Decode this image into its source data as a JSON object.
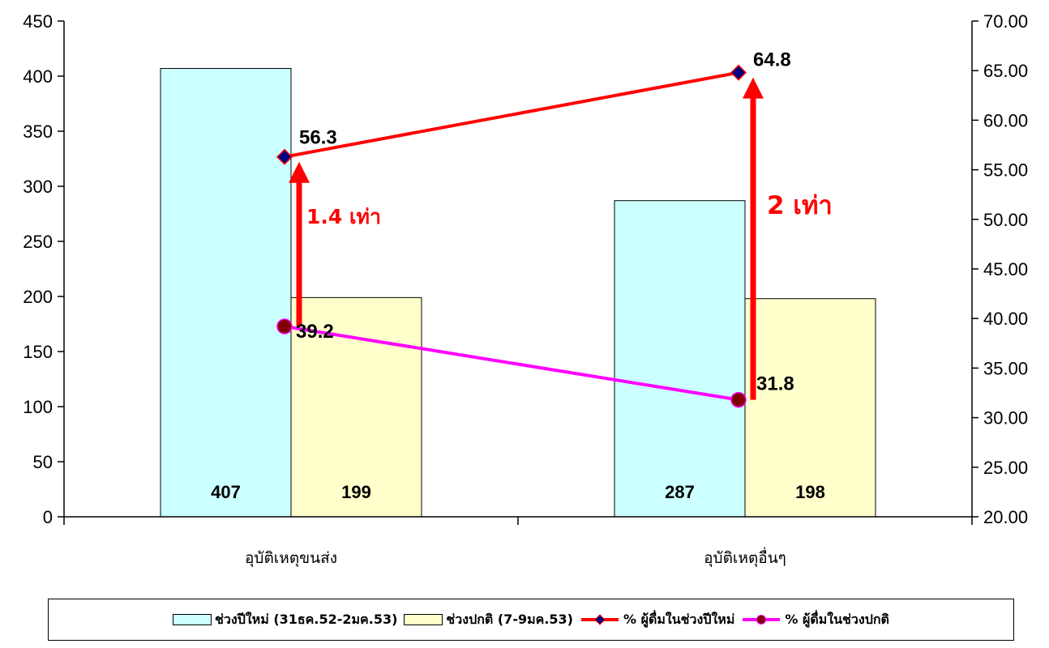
{
  "chart_data": {
    "type": "bar",
    "categories": [
      "อุบัติเหตุขนส่ง",
      "อุบัติเหตุอื่นๆ"
    ],
    "series": [
      {
        "name": "ช่วงปีใหม่ (31ธค.52-2มค.53)",
        "type": "bar",
        "axis": "left",
        "color": "#ccffff",
        "values": [
          407,
          287
        ]
      },
      {
        "name": "ช่วงปกติ (7-9มค.53)",
        "type": "bar",
        "axis": "left",
        "color": "#ffffcc",
        "values": [
          199,
          198
        ]
      },
      {
        "name": "% ผู้ดื่มในช่วงปีใหม่",
        "type": "line",
        "axis": "right",
        "color": "#ff0000",
        "marker_color": "#000080",
        "marker": "diamond",
        "values": [
          56.3,
          64.8
        ]
      },
      {
        "name": "% ผู้ดื่มในช่วงปกติ",
        "type": "line",
        "axis": "right",
        "color": "#ff00ff",
        "marker_color": "#800000",
        "marker": "circle",
        "values": [
          39.2,
          31.8
        ]
      }
    ],
    "bar_labels": [
      [
        "407",
        "287"
      ],
      [
        "199",
        "198"
      ]
    ],
    "point_labels": [
      [
        "56.3",
        "64.8"
      ],
      [
        "39.2",
        "31.8"
      ]
    ],
    "yleft": {
      "ylim": [
        0,
        450
      ],
      "ticks": [
        0,
        50,
        100,
        150,
        200,
        250,
        300,
        350,
        400,
        450
      ],
      "tick_labels": [
        "0",
        "50",
        "100",
        "150",
        "200",
        "250",
        "300",
        "350",
        "400",
        "450"
      ]
    },
    "yright": {
      "ylim": [
        20,
        70
      ],
      "ticks": [
        20,
        25,
        30,
        35,
        40,
        45,
        50,
        55,
        60,
        65,
        70
      ],
      "tick_labels": [
        "20.00",
        "25.00",
        "30.00",
        "35.00",
        "40.00",
        "45.00",
        "50.00",
        "55.00",
        "60.00",
        "65.00",
        "70.00"
      ]
    },
    "annotations": [
      {
        "text": "1.4 เท่า",
        "category_index": 0,
        "from": 39.2,
        "to": 56.3,
        "color": "#ff0000"
      },
      {
        "text": "2 เท่า",
        "category_index": 1,
        "from": 31.8,
        "to": 64.8,
        "color": "#ff0000"
      }
    ],
    "grid": false,
    "legend_position": "bottom"
  }
}
